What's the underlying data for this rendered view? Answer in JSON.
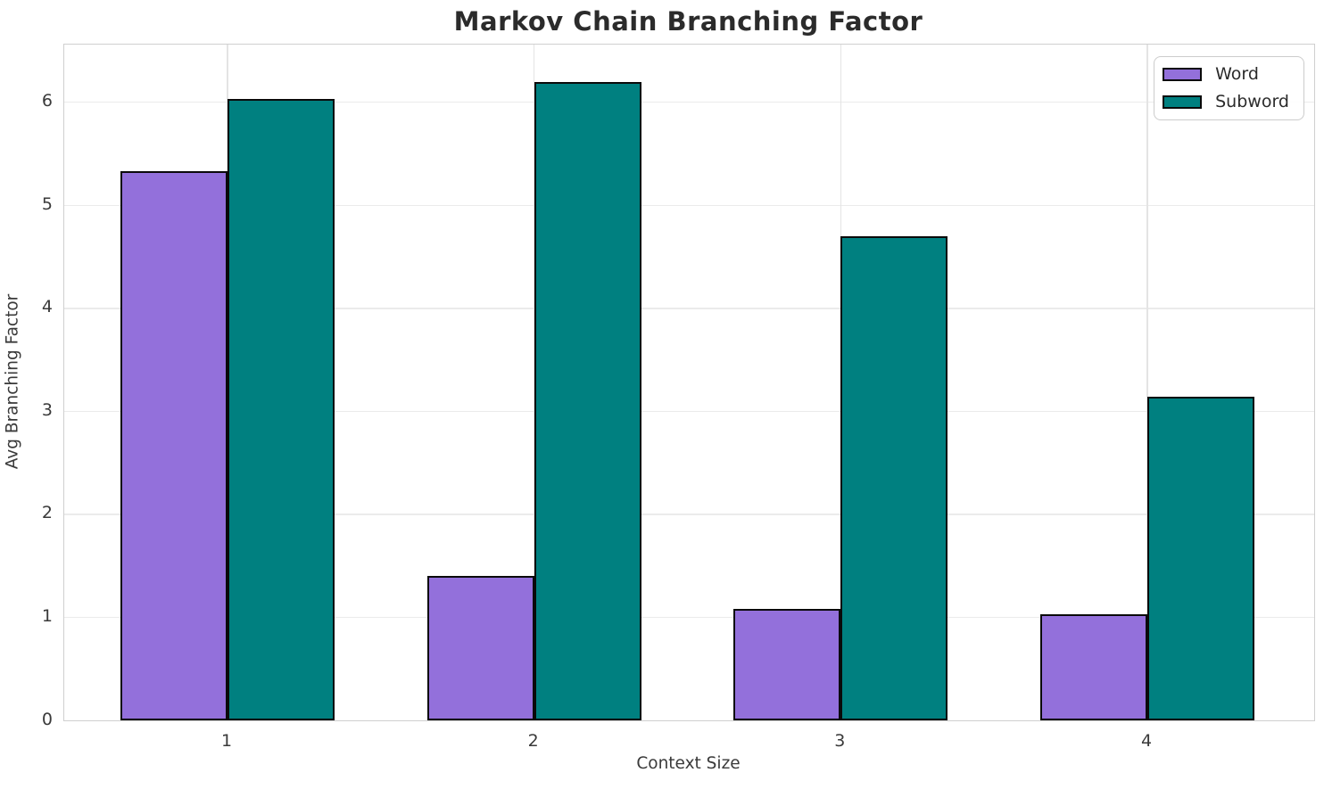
{
  "chart_data": {
    "type": "bar",
    "title": "Markov Chain Branching Factor",
    "xlabel": "Context Size",
    "ylabel": "Avg Branching Factor",
    "categories": [
      "1",
      "2",
      "3",
      "4"
    ],
    "series": [
      {
        "name": "Word",
        "color": "#9370DB",
        "values": [
          5.33,
          1.4,
          1.08,
          1.03
        ]
      },
      {
        "name": "Subword",
        "color": "#008080",
        "values": [
          6.03,
          6.2,
          4.7,
          3.14
        ]
      }
    ],
    "bar_edge_color": "#0a0a0a",
    "ylim": [
      0,
      6.56
    ],
    "yticks": [
      0,
      1,
      2,
      3,
      4,
      5,
      6
    ],
    "grid": true,
    "grid_color": "#ebebeb",
    "legend": {
      "position": "upper right",
      "entries": [
        "Word",
        "Subword"
      ]
    }
  }
}
